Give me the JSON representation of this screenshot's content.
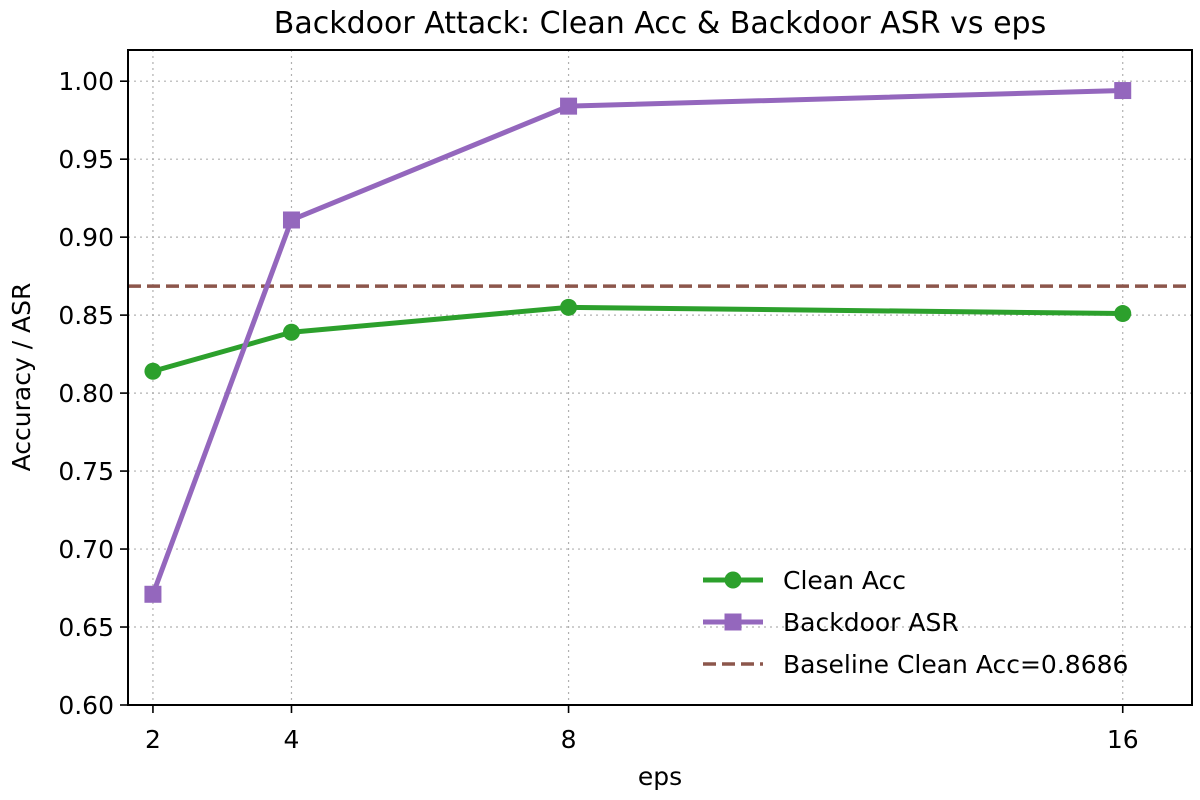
{
  "chart_data": {
    "type": "line",
    "title": "Backdoor Attack: Clean Acc & Backdoor ASR vs eps",
    "xlabel": "eps",
    "ylabel": "Accuracy / ASR",
    "x": [
      2,
      4,
      8,
      16
    ],
    "xlim": [
      1.64,
      17.0
    ],
    "ylim": [
      0.6,
      1.02
    ],
    "xticks": [
      2,
      4,
      8,
      16
    ],
    "xtick_labels": [
      "2",
      "4",
      "8",
      "16"
    ],
    "yticks": [
      0.6,
      0.65,
      0.7,
      0.75,
      0.8,
      0.85,
      0.9,
      0.95,
      1.0
    ],
    "ytick_labels": [
      "0.60",
      "0.65",
      "0.70",
      "0.75",
      "0.80",
      "0.85",
      "0.90",
      "0.95",
      "1.00"
    ],
    "grid": true,
    "legend_position": "bottom-right",
    "series": [
      {
        "name": "Clean Acc",
        "values": [
          0.814,
          0.839,
          0.855,
          0.851
        ],
        "color": "#2ca02c",
        "marker": "circle",
        "line_style": "solid"
      },
      {
        "name": "Backdoor ASR",
        "values": [
          0.671,
          0.911,
          0.984,
          0.994
        ],
        "color": "#9467bd",
        "marker": "square",
        "line_style": "solid"
      }
    ],
    "reference_lines": [
      {
        "name": "Baseline Clean Acc=0.8686",
        "value": 0.8686,
        "color": "#8c564b",
        "line_style": "dashed"
      }
    ]
  }
}
